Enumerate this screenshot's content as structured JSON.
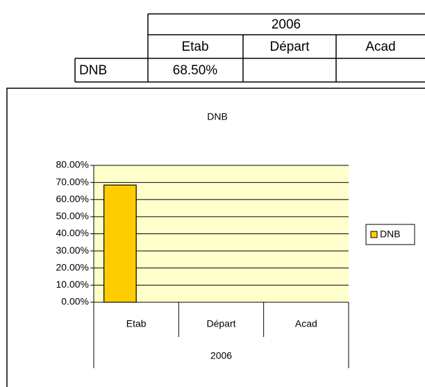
{
  "table": {
    "rows": [
      [
        "2006"
      ],
      [
        "Etab",
        "Départ",
        "Acad"
      ],
      [
        "DNB",
        "68.50%"
      ]
    ]
  },
  "chart_data": {
    "type": "bar",
    "title": "DNB",
    "categories": [
      "Etab",
      "Départ",
      "Acad"
    ],
    "group_label": "2006",
    "series": [
      {
        "name": "DNB",
        "color": "#ffcc00",
        "values": [
          68.5,
          null,
          null
        ]
      }
    ],
    "ylim": [
      0,
      80
    ],
    "yticks": [
      {
        "value": 0,
        "label": "0.00%"
      },
      {
        "value": 10,
        "label": "10.00%"
      },
      {
        "value": 20,
        "label": "20.00%"
      },
      {
        "value": 30,
        "label": "30.00%"
      },
      {
        "value": 40,
        "label": "40.00%"
      },
      {
        "value": 50,
        "label": "50.00%"
      },
      {
        "value": 60,
        "label": "60.00%"
      },
      {
        "value": 70,
        "label": "70.00%"
      },
      {
        "value": 80,
        "label": "80.00%"
      }
    ],
    "grid": true,
    "plot_background": "#ffffcc",
    "legend": "right"
  }
}
